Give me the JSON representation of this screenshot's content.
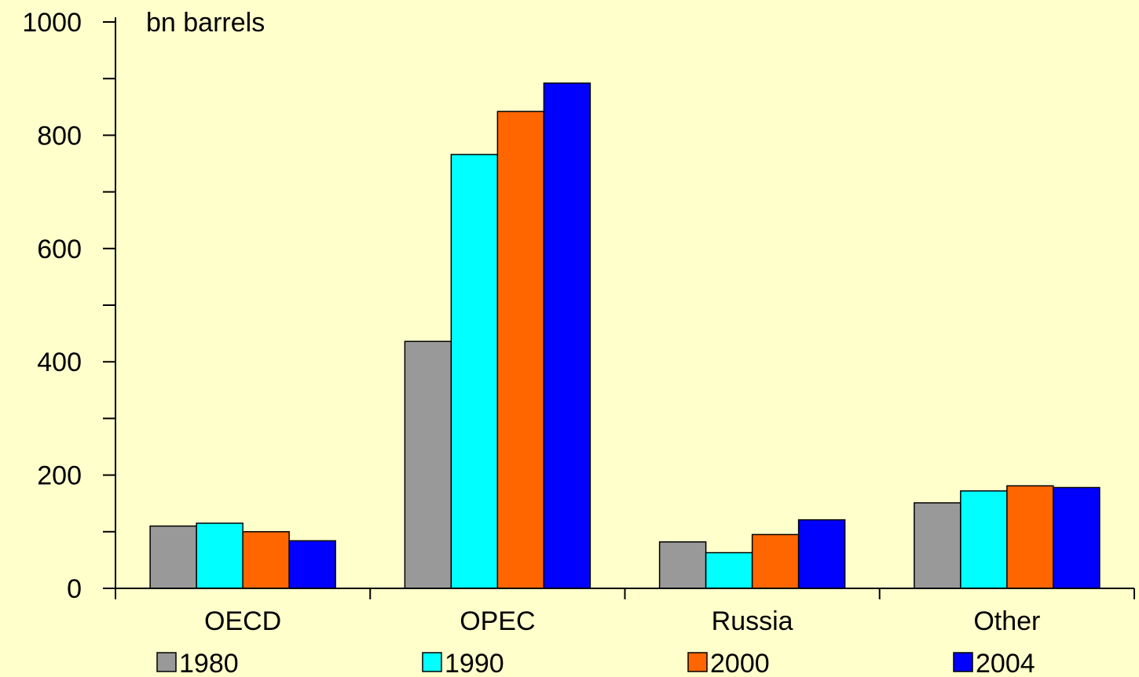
{
  "chart_data": {
    "type": "bar",
    "unit_label": "bn barrels",
    "categories": [
      "OECD",
      "OPEC",
      "Russia",
      "Other"
    ],
    "series": [
      {
        "name": "1980",
        "color": "#999999",
        "values": [
          110,
          436,
          82,
          151
        ]
      },
      {
        "name": "1990",
        "color": "#00FFFF",
        "values": [
          115,
          766,
          63,
          172
        ]
      },
      {
        "name": "2000",
        "color": "#FF6600",
        "values": [
          100,
          842,
          95,
          181
        ]
      },
      {
        "name": "2004",
        "color": "#0000FF",
        "values": [
          84,
          892,
          121,
          178
        ]
      }
    ],
    "ylim": [
      0,
      1000
    ],
    "yticks": [
      0,
      200,
      400,
      600,
      800,
      1000
    ],
    "grid": false,
    "legend_position": "bottom"
  }
}
